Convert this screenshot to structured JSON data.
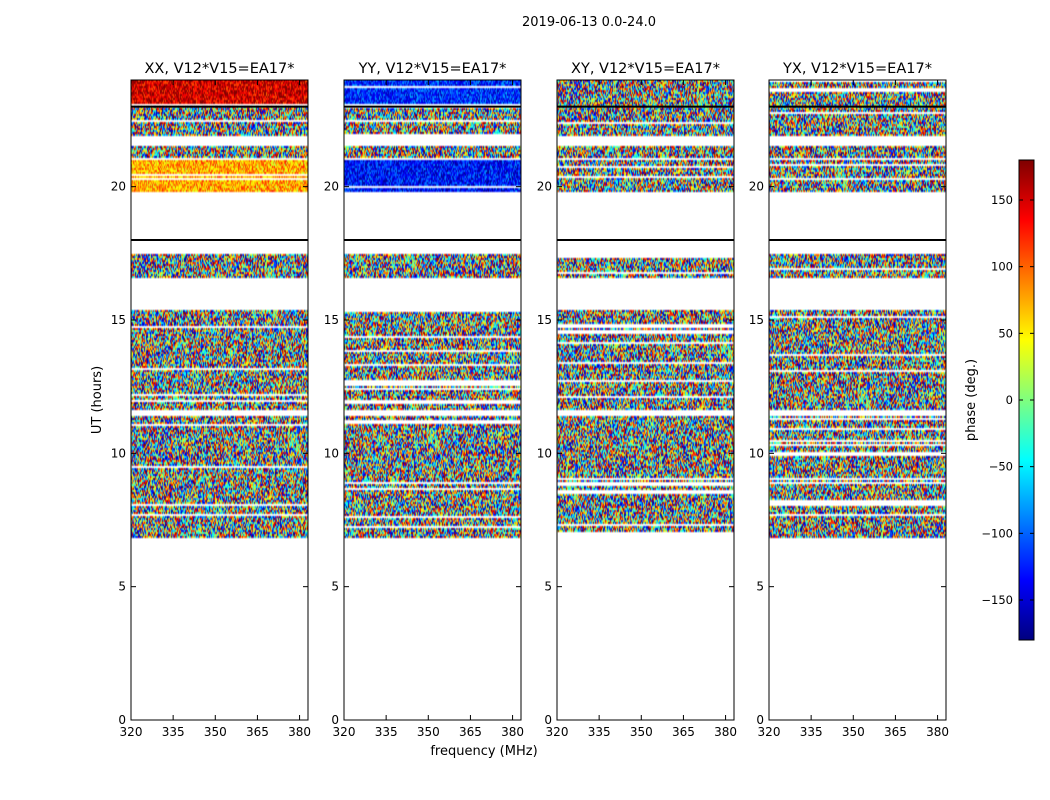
{
  "figure": {
    "suptitle": "2019-06-13 0.0-24.0",
    "xlabel": "frequency (MHz)",
    "ylabel": "UT (hours)"
  },
  "colorbar": {
    "label": "phase (deg.)",
    "range": [
      -180,
      180
    ],
    "ticks": [
      150,
      100,
      50,
      0,
      -50,
      -100,
      -150
    ],
    "tick_labels": [
      "150",
      "100",
      "50",
      "0",
      "−50",
      "−100",
      "−150"
    ],
    "colormap": "jet",
    "colors": [
      "#00007f",
      "#0000ff",
      "#007fff",
      "#00ffff",
      "#7fff7f",
      "#ffff00",
      "#ff7f00",
      "#ff0000",
      "#7f0000"
    ]
  },
  "chart_data": [
    {
      "type": "heatmap",
      "title": "XX, V12*V15=EA17*",
      "xlabel": "frequency (MHz)",
      "ylabel": "UT (hours)",
      "xlim": [
        320,
        383
      ],
      "ylim": [
        0,
        24
      ],
      "x_ticks": [
        320,
        335,
        350,
        365,
        380
      ],
      "y_ticks": [
        0,
        5,
        10,
        15,
        20
      ],
      "noise_bands": [
        [
          6.8,
          11.4
        ],
        [
          11.6,
          15.4
        ],
        [
          16.6,
          17.5
        ],
        [
          21.1,
          21.5
        ],
        [
          21.9,
          23.0
        ]
      ],
      "coherent_bands": [
        {
          "t": [
            19.8,
            21.0
          ],
          "phase": 75
        },
        {
          "t": [
            23.1,
            24.0
          ],
          "phase": 150
        }
      ],
      "black_lines": [
        18.0,
        23.0
      ]
    },
    {
      "type": "heatmap",
      "title": "YY, V12*V15=EA17*",
      "xlabel": "frequency (MHz)",
      "ylabel": "UT (hours)",
      "xlim": [
        320,
        383
      ],
      "ylim": [
        0,
        24
      ],
      "x_ticks": [
        320,
        335,
        350,
        365,
        380
      ],
      "y_ticks": [
        0,
        5,
        10,
        15,
        20
      ],
      "noise_bands": [
        [
          6.8,
          11.4
        ],
        [
          11.6,
          15.4
        ],
        [
          16.6,
          17.5
        ],
        [
          21.1,
          21.5
        ],
        [
          21.9,
          23.0
        ]
      ],
      "coherent_bands": [
        {
          "t": [
            19.8,
            21.0
          ],
          "phase": -130
        },
        {
          "t": [
            23.1,
            24.0
          ],
          "phase": -120
        }
      ],
      "black_lines": [
        18.0,
        23.0
      ]
    },
    {
      "type": "heatmap",
      "title": "XY, V12*V15=EA17*",
      "xlabel": "frequency (MHz)",
      "ylabel": "UT (hours)",
      "xlim": [
        320,
        383
      ],
      "ylim": [
        0,
        24
      ],
      "x_ticks": [
        320,
        335,
        350,
        365,
        380
      ],
      "y_ticks": [
        0,
        5,
        10,
        15,
        20
      ],
      "noise_bands": [
        [
          6.8,
          11.4
        ],
        [
          11.6,
          15.4
        ],
        [
          16.6,
          17.5
        ],
        [
          19.8,
          21.0
        ],
        [
          21.1,
          21.5
        ],
        [
          21.9,
          24.0
        ]
      ],
      "coherent_bands": [],
      "black_lines": [
        18.0,
        23.0
      ]
    },
    {
      "type": "heatmap",
      "title": "YX, V12*V15=EA17*",
      "xlabel": "frequency (MHz)",
      "ylabel": "UT (hours)",
      "xlim": [
        320,
        383
      ],
      "ylim": [
        0,
        24
      ],
      "x_ticks": [
        320,
        335,
        350,
        365,
        380
      ],
      "y_ticks": [
        0,
        5,
        10,
        15,
        20
      ],
      "noise_bands": [
        [
          6.8,
          11.4
        ],
        [
          11.6,
          15.4
        ],
        [
          16.6,
          17.5
        ],
        [
          19.8,
          21.0
        ],
        [
          21.1,
          21.5
        ],
        [
          21.9,
          24.0
        ]
      ],
      "coherent_bands": [],
      "black_lines": [
        18.0,
        23.0
      ]
    }
  ]
}
